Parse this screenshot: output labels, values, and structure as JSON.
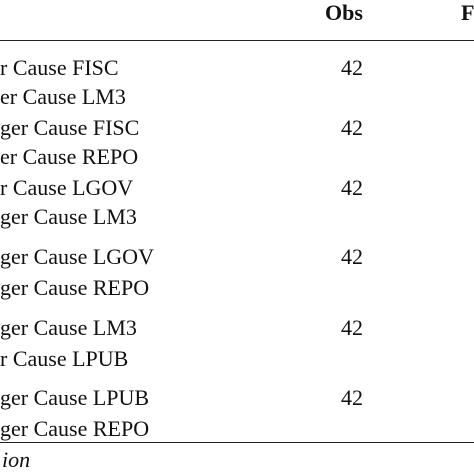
{
  "table": {
    "header": [
      "Obs",
      "F"
    ],
    "rows": [
      {
        "lines": [
          "r Cause FISC",
          "er Cause LM3"
        ],
        "obs": 42
      },
      {
        "lines": [
          "ger Cause FISC",
          "er Cause REPO"
        ],
        "obs": 42
      },
      {
        "lines": [
          "r Cause LGOV",
          "ger Cause LM3"
        ],
        "obs": 42
      },
      {
        "lines": [
          "ger Cause LGOV",
          "ger Cause REPO"
        ],
        "obs": 42
      },
      {
        "lines": [
          "ger Cause LM3",
          "r Cause LPUB"
        ],
        "obs": 42
      },
      {
        "lines": [
          "ger Cause LPUB",
          "ger Cause REPO"
        ],
        "obs": 42
      }
    ]
  },
  "footnote": "ion"
}
